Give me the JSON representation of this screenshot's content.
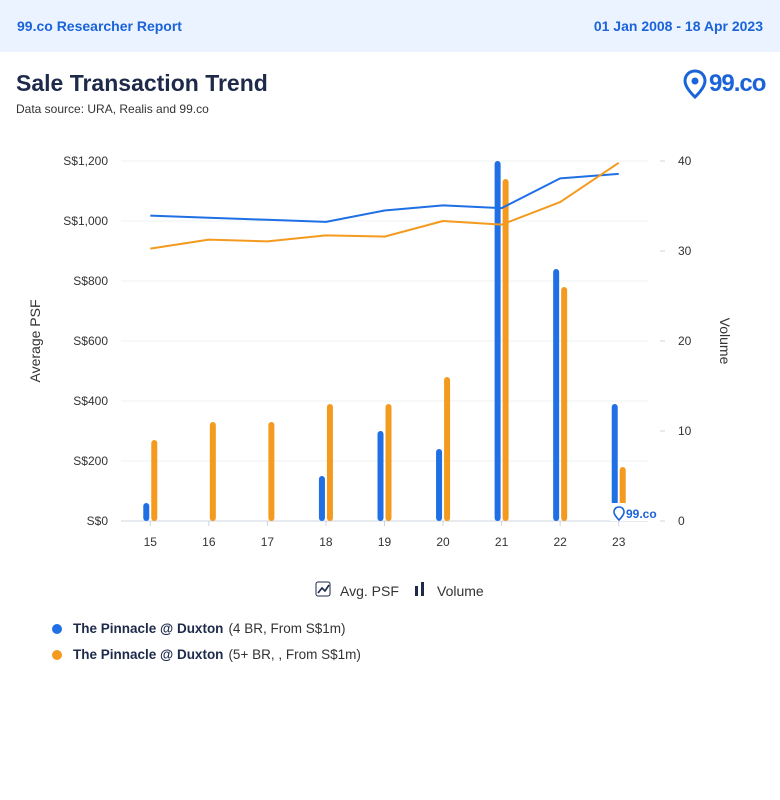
{
  "header": {
    "report_name": "99.co Researcher Report",
    "date_range": "01 Jan 2008 - 18 Apr 2023"
  },
  "title": "Sale Transaction Trend",
  "subtitle": "Data source: URA, Realis and 99.co",
  "logo": {
    "text": "99.co",
    "icon": "location-pin-icon"
  },
  "watermark": "99.co",
  "chart_toggles": [
    {
      "label": "Avg. PSF",
      "icon": "line-chart-icon"
    },
    {
      "label": "Volume",
      "icon": "bar-chart-icon"
    }
  ],
  "colors": {
    "series_1": "#1f6fe5",
    "series_2": "#f39a1f",
    "brand": "#1a63d8"
  },
  "chart_data": {
    "type": "bar",
    "categories": [
      "15",
      "16",
      "17",
      "18",
      "19",
      "20",
      "21",
      "22",
      "23"
    ],
    "xlabel": "",
    "ylabel": "Average PSF",
    "y2label": "Volume",
    "ylim": [
      0,
      1200
    ],
    "y2lim": [
      0,
      40
    ],
    "y_ticks": [
      "S$0",
      "S$200",
      "S$400",
      "S$600",
      "S$800",
      "S$1,000",
      "S$1,200"
    ],
    "y2_ticks": [
      "0",
      "10",
      "20",
      "30",
      "40"
    ],
    "series": [
      {
        "name": "The Pinnacle @ Duxton",
        "detail": "(4 BR, From S$1m)",
        "volume": [
          2,
          0,
          0,
          5,
          10,
          8,
          40,
          28,
          13
        ],
        "avg_psf": [
          1018,
          1011,
          1004,
          997,
          1035,
          1052,
          1043,
          1142,
          1157
        ]
      },
      {
        "name": "The Pinnacle @ Duxton",
        "detail": "(5+ BR, , From S$1m)",
        "volume": [
          9,
          11,
          11,
          13,
          13,
          16,
          38,
          26,
          6
        ],
        "avg_psf": [
          908,
          938,
          932,
          952,
          948,
          1000,
          988,
          1063,
          1194
        ]
      }
    ]
  }
}
